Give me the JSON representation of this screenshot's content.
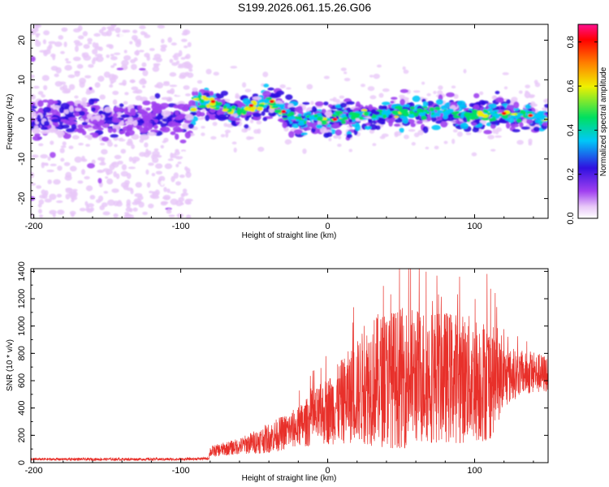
{
  "title": "S199.2026.061.15.26.G06",
  "colors": {
    "snr_line": "#e8302a",
    "axis": "#000000"
  },
  "chart_data": [
    {
      "id": "spectrogram",
      "type": "heatmap",
      "xlabel": "Height of straight line (km)",
      "ylabel": "Frequency (Hz)",
      "xlim": [
        -202,
        150
      ],
      "ylim": [
        -25,
        24
      ],
      "xticks": [
        -200,
        -100,
        0,
        100
      ],
      "xtick_labels": [
        "-200",
        "-100",
        "0",
        "100"
      ],
      "yticks": [
        -20,
        -10,
        0,
        10,
        20
      ],
      "ytick_labels": [
        "-20",
        "-10",
        "0",
        "10",
        "20"
      ],
      "colorbar": {
        "label": "Normalized spectral amplitude",
        "range": [
          0.0,
          0.88
        ],
        "ticks": [
          0.0,
          0.2,
          0.4,
          0.6,
          0.8
        ],
        "tick_labels": [
          "0.0",
          "0.2",
          "0.4",
          "0.6",
          "0.8"
        ],
        "colormap": [
          "#ffffff",
          "#e8c8f8",
          "#a040f0",
          "#3010e0",
          "#00c8f8",
          "#00e060",
          "#f0f000",
          "#ff8000",
          "#ff0000",
          "#ff1090"
        ]
      },
      "ridge": {
        "x": [
          -202,
          -160,
          -120,
          -93,
          -90,
          -80,
          -60,
          -40,
          -30,
          -20,
          0,
          20,
          50,
          80,
          100,
          120,
          150
        ],
        "freq": [
          0,
          0,
          0,
          0,
          5,
          4,
          2,
          4.5,
          2,
          0,
          0,
          1,
          2,
          1.5,
          1,
          1.5,
          0.5
        ]
      },
      "notes": "Noise scatter spans the full frequency range for x < -93 km; coherent ridge near 0 Hz for x > -93 km"
    },
    {
      "id": "snr",
      "type": "line",
      "xlabel": "Height of straight line (km)",
      "ylabel": "SNR (10 * v/v)",
      "xlim": [
        -202,
        150
      ],
      "ylim": [
        0,
        1420
      ],
      "xticks": [
        -200,
        -100,
        0,
        100
      ],
      "xtick_labels": [
        "-200",
        "-100",
        "0",
        "100"
      ],
      "yticks": [
        0,
        200,
        400,
        600,
        800,
        1000,
        1200,
        1400
      ],
      "ytick_labels": [
        "0",
        "200",
        "400",
        "600",
        "800",
        "1000",
        "1200",
        "1400"
      ],
      "envelope": {
        "x": [
          -202,
          -150,
          -100,
          -81,
          -80,
          -60,
          -40,
          -20,
          0,
          20,
          30,
          50,
          70,
          90,
          110,
          120,
          130,
          150
        ],
        "mean": [
          25,
          25,
          25,
          30,
          80,
          120,
          180,
          260,
          380,
          520,
          600,
          620,
          640,
          620,
          600,
          620,
          650,
          650
        ],
        "amp": [
          10,
          10,
          10,
          10,
          40,
          60,
          110,
          150,
          250,
          380,
          480,
          520,
          500,
          480,
          450,
          230,
          160,
          140
        ]
      }
    }
  ]
}
